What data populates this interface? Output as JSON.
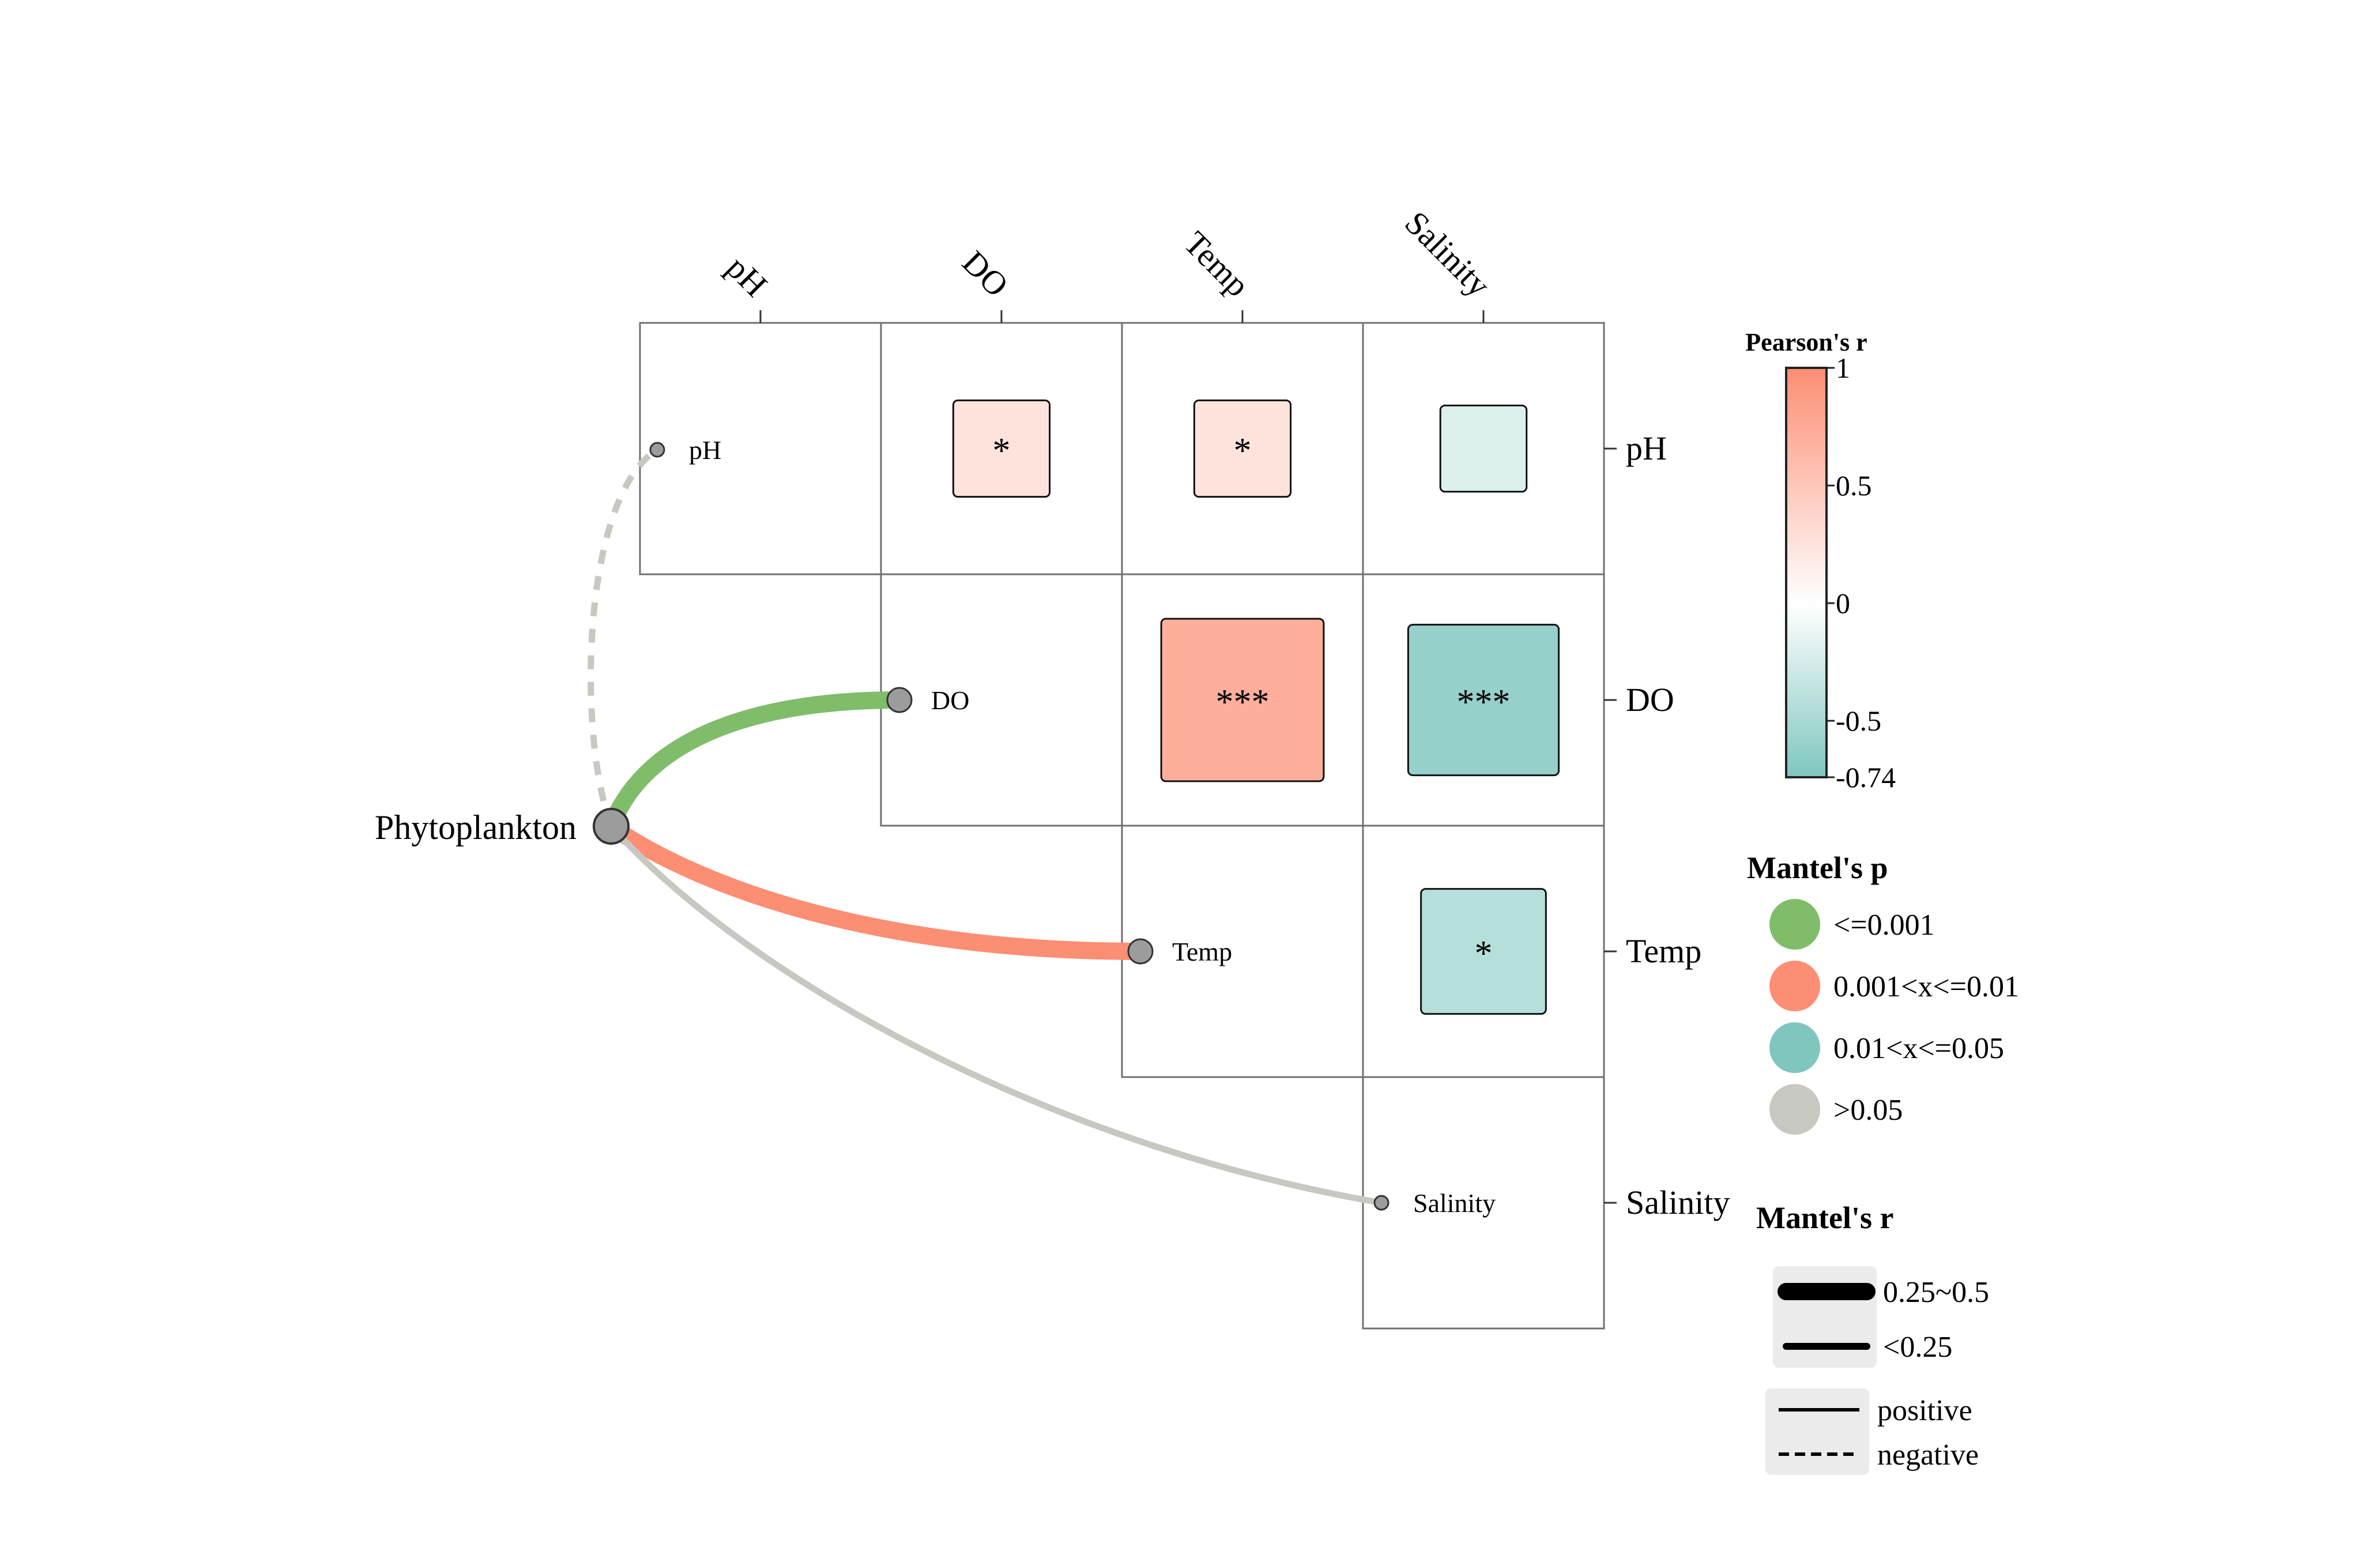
{
  "chart_data": {
    "type": "heatmap",
    "variables": [
      "pH",
      "DO",
      "Temp",
      "Salinity"
    ],
    "pearson": [
      {
        "row": "pH",
        "col": "DO",
        "r": 0.25,
        "sig": "*"
      },
      {
        "row": "pH",
        "col": "Temp",
        "r": 0.25,
        "sig": "*"
      },
      {
        "row": "pH",
        "col": "Salinity",
        "r": -0.2,
        "sig": ""
      },
      {
        "row": "DO",
        "col": "Temp",
        "r": 0.71,
        "sig": "***"
      },
      {
        "row": "DO",
        "col": "Salinity",
        "r": -0.61,
        "sig": "***"
      },
      {
        "row": "Temp",
        "col": "Salinity",
        "r": -0.42,
        "sig": "*"
      }
    ],
    "species": "Phytoplankton",
    "mantel": [
      {
        "env": "pH",
        "p_class": ">0.05",
        "r_class": "<0.25",
        "sign": "negative"
      },
      {
        "env": "DO",
        "p_class": "<=0.001",
        "r_class": "0.25~0.5",
        "sign": "positive"
      },
      {
        "env": "Temp",
        "p_class": "0.001<x<=0.01",
        "r_class": "0.25~0.5",
        "sign": "positive"
      },
      {
        "env": "Salinity",
        "p_class": ">0.05",
        "r_class": "<0.25",
        "sign": "positive"
      }
    ],
    "colorbar": {
      "title": "Pearson's r",
      "min": -0.74,
      "max": 1,
      "ticks": [
        "1",
        "0.5",
        "0",
        "-0.5",
        "-0.74"
      ],
      "tick_values": [
        1,
        0.5,
        0,
        -0.5,
        -0.74
      ],
      "low_color": "#7fc6bf",
      "mid_color": "#ffffff",
      "high_color": "#fc8e73"
    },
    "mantel_p_legend": {
      "title": "Mantel's p",
      "items": [
        {
          "label": "<=0.001",
          "color": "#80bd6a"
        },
        {
          "label": "0.001<x<=0.01",
          "color": "#fc8e73"
        },
        {
          "label": "0.01<x<=0.05",
          "color": "#7fc6bf"
        },
        {
          "label": ">0.05",
          "color": "#c8c8c2"
        }
      ]
    },
    "mantel_r_legend": {
      "title": "Mantel's r",
      "items": [
        {
          "label": "0.25~0.5"
        },
        {
          "label": "<0.25"
        }
      ]
    },
    "sign_legend": {
      "items": [
        {
          "label": "positive"
        },
        {
          "label": "negative"
        }
      ]
    }
  }
}
